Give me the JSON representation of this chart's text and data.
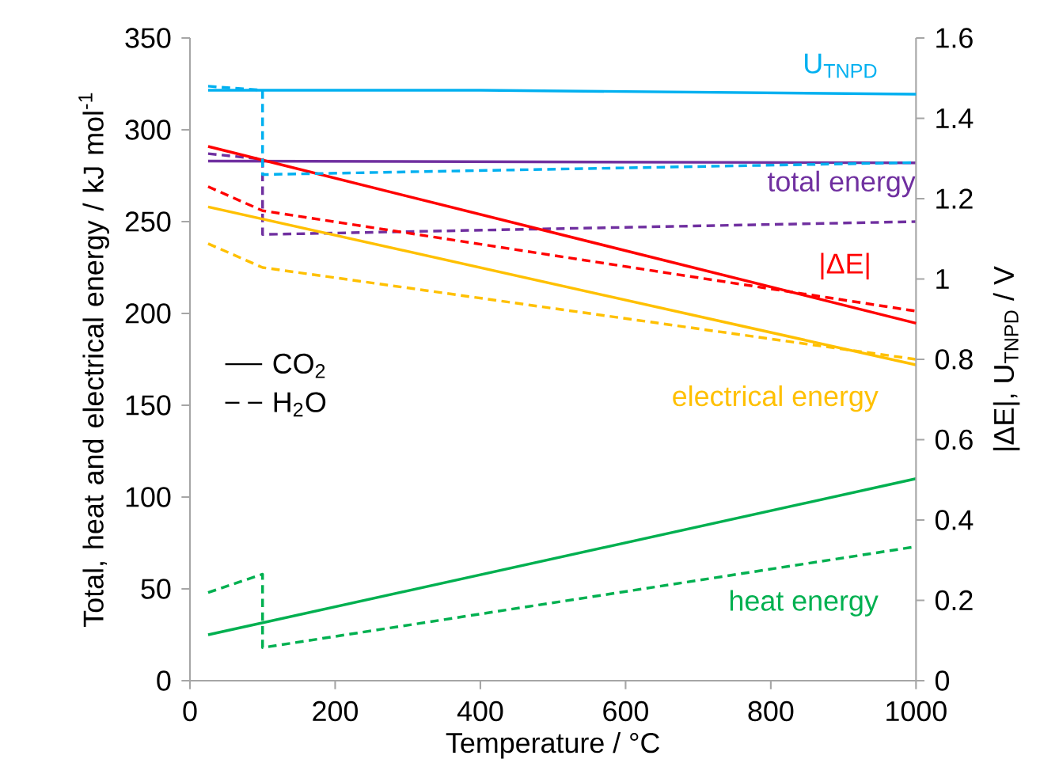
{
  "chart_data": {
    "type": "line",
    "xlabel": "Temperature / °C",
    "ylabel": "Total, heat and electrical energy / kJ mol$^{-1}$",
    "y2label": "|ΔE|, U$_{TNPD}$ / V",
    "xlim": [
      0,
      1000
    ],
    "xticks": [
      0,
      200,
      400,
      600,
      800,
      1000
    ],
    "ylim": [
      0,
      350
    ],
    "yticks": [
      0,
      50,
      100,
      150,
      200,
      250,
      300,
      350
    ],
    "y2lim": [
      0,
      1.6
    ],
    "y2ticks": [
      0,
      0.2,
      0.4,
      0.6,
      0.8,
      1,
      1.2,
      1.4,
      1.6
    ],
    "grid": false,
    "marker": "none",
    "annotations": [
      "CO$_{2}$",
      "H$_{2}$O"
    ],
    "series": [
      {
        "name": "total energy",
        "color": "#7030a0",
        "line_style": "solid",
        "x": [
          25,
          1000
        ],
        "values": [
          283,
          282
        ]
      },
      {
        "color": "#7030a0",
        "line_style": "dashed",
        "x": [
          25,
          100,
          100,
          1000
        ],
        "values": [
          287,
          284,
          243,
          250
        ]
      },
      {
        "name": "heat energy",
        "color": "#00b050",
        "line_style": "solid",
        "x": [
          25,
          1000
        ],
        "values": [
          25,
          110
        ]
      },
      {
        "color": "#00b050",
        "line_style": "dashed",
        "x": [
          25,
          100,
          100,
          1000
        ],
        "values": [
          48,
          58,
          18,
          73
        ]
      },
      {
        "name": "electrical energy",
        "color": "#ffc000",
        "line_style": "solid",
        "x": [
          25,
          1000
        ],
        "values": [
          258,
          172
        ]
      },
      {
        "color": "#ffc000",
        "line_style": "dashed",
        "x": [
          25,
          100,
          1000
        ],
        "values": [
          238,
          225,
          175
        ]
      },
      {
        "name": "|ΔE|",
        "color": "#ff0000",
        "line_style": "solid",
        "axis": "y2",
        "x": [
          25,
          1000
        ],
        "values": [
          1.33,
          0.89
        ]
      },
      {
        "color": "#ff0000",
        "line_style": "dashed",
        "axis": "y2",
        "x": [
          25,
          100,
          1000
        ],
        "values": [
          1.23,
          1.17,
          0.92
        ]
      },
      {
        "name": "U$_{TNPD}$",
        "color": "#00b0f0",
        "line_style": "solid",
        "axis": "y2",
        "x": [
          25,
          400,
          1000
        ],
        "values": [
          1.47,
          1.47,
          1.46
        ]
      },
      {
        "color": "#00b0f0",
        "line_style": "dashed",
        "axis": "y2",
        "x": [
          25,
          100,
          100,
          1000
        ],
        "values": [
          1.48,
          1.47,
          1.26,
          1.29
        ]
      }
    ]
  }
}
